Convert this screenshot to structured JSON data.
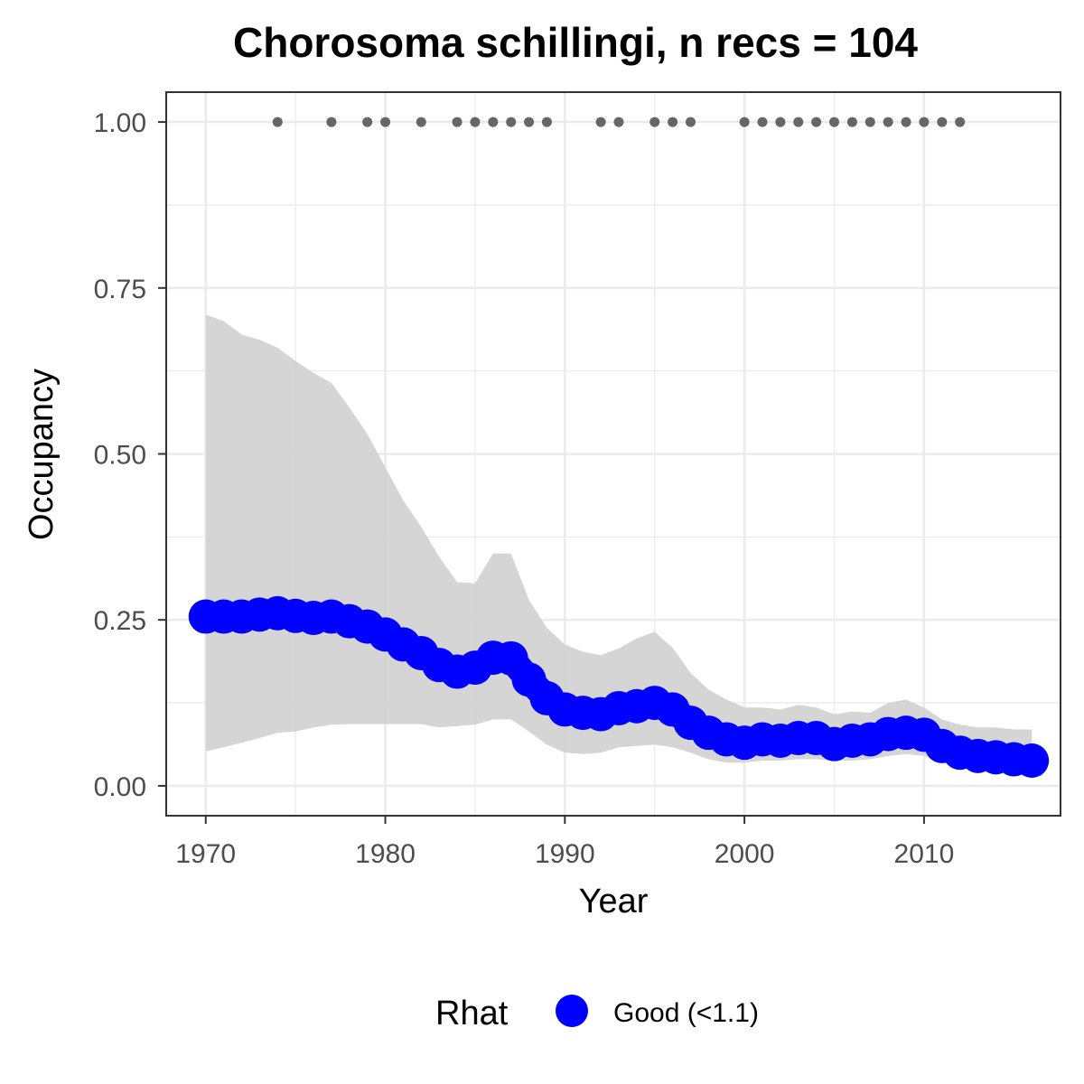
{
  "chart_data": {
    "type": "line",
    "title": "Chorosoma schillingi, n recs = 104",
    "xlabel": "Year",
    "ylabel": "Occupancy",
    "xlim": [
      1967.8,
      2017.6
    ],
    "ylim": [
      -0.045,
      1.045
    ],
    "x_ticks": [
      1970,
      1980,
      1990,
      2000,
      2010
    ],
    "x_tick_labels": [
      "1970",
      "1980",
      "1990",
      "2000",
      "2010"
    ],
    "y_ticks": [
      0,
      0.25,
      0.5,
      0.75,
      1.0
    ],
    "y_tick_labels": [
      "0.00",
      "0.25",
      "0.50",
      "0.75",
      "1.00"
    ],
    "grid": true,
    "legend": {
      "title": "Rhat",
      "position": "bottom",
      "entries": [
        {
          "label": "Good (<1.1)",
          "color": "#0000ff"
        }
      ]
    },
    "colors": {
      "series": "#0000ff",
      "ribbon": "#d3d3d3",
      "records": "#666666",
      "grid": "#ebebeb",
      "panel_border": "#333333"
    },
    "series": [
      {
        "name": "Good (<1.1)",
        "x": [
          1970,
          1971,
          1972,
          1973,
          1974,
          1975,
          1976,
          1977,
          1978,
          1979,
          1980,
          1981,
          1982,
          1983,
          1984,
          1985,
          1986,
          1987,
          1988,
          1989,
          1990,
          1991,
          1992,
          1993,
          1994,
          1995,
          1996,
          1997,
          1998,
          1999,
          2000,
          2001,
          2002,
          2003,
          2004,
          2005,
          2006,
          2007,
          2008,
          2009,
          2010,
          2011,
          2012,
          2013,
          2014,
          2015,
          2016
        ],
        "y": [
          0.255,
          0.255,
          0.255,
          0.258,
          0.26,
          0.256,
          0.253,
          0.255,
          0.248,
          0.24,
          0.228,
          0.213,
          0.2,
          0.182,
          0.172,
          0.178,
          0.193,
          0.192,
          0.16,
          0.132,
          0.115,
          0.11,
          0.108,
          0.117,
          0.12,
          0.125,
          0.115,
          0.095,
          0.08,
          0.07,
          0.065,
          0.07,
          0.068,
          0.072,
          0.072,
          0.063,
          0.068,
          0.07,
          0.078,
          0.08,
          0.077,
          0.06,
          0.05,
          0.045,
          0.043,
          0.04,
          0.038
        ]
      }
    ],
    "ribbon": {
      "x": [
        1970,
        1971,
        1972,
        1973,
        1974,
        1975,
        1976,
        1977,
        1978,
        1979,
        1980,
        1981,
        1982,
        1983,
        1984,
        1985,
        1986,
        1987,
        1988,
        1989,
        1990,
        1991,
        1992,
        1993,
        1994,
        1995,
        1996,
        1997,
        1998,
        1999,
        2000,
        2001,
        2002,
        2003,
        2004,
        2005,
        2006,
        2007,
        2008,
        2009,
        2010,
        2011,
        2012,
        2013,
        2014,
        2015,
        2016
      ],
      "lower": [
        0.052,
        0.058,
        0.065,
        0.072,
        0.08,
        0.082,
        0.088,
        0.092,
        0.093,
        0.093,
        0.093,
        0.093,
        0.093,
        0.088,
        0.09,
        0.092,
        0.1,
        0.1,
        0.082,
        0.062,
        0.05,
        0.048,
        0.05,
        0.058,
        0.06,
        0.062,
        0.058,
        0.05,
        0.04,
        0.035,
        0.035,
        0.038,
        0.038,
        0.04,
        0.04,
        0.038,
        0.038,
        0.04,
        0.045,
        0.048,
        0.045,
        0.035,
        0.03,
        0.027,
        0.025,
        0.022,
        0.02
      ],
      "upper": [
        0.71,
        0.7,
        0.68,
        0.672,
        0.66,
        0.64,
        0.622,
        0.607,
        0.57,
        0.53,
        0.48,
        0.43,
        0.39,
        0.345,
        0.307,
        0.305,
        0.35,
        0.35,
        0.28,
        0.238,
        0.213,
        0.202,
        0.197,
        0.207,
        0.222,
        0.232,
        0.208,
        0.17,
        0.145,
        0.13,
        0.118,
        0.118,
        0.115,
        0.122,
        0.118,
        0.108,
        0.112,
        0.11,
        0.125,
        0.13,
        0.118,
        0.1,
        0.092,
        0.088,
        0.088,
        0.085,
        0.085
      ]
    },
    "records": {
      "y": 1.0,
      "x": [
        1974,
        1977,
        1979,
        1980,
        1982,
        1984,
        1985,
        1986,
        1987,
        1988,
        1989,
        1992,
        1993,
        1995,
        1996,
        1997,
        2000,
        2001,
        2002,
        2003,
        2004,
        2005,
        2006,
        2007,
        2008,
        2009,
        2010,
        2011,
        2012
      ]
    }
  }
}
